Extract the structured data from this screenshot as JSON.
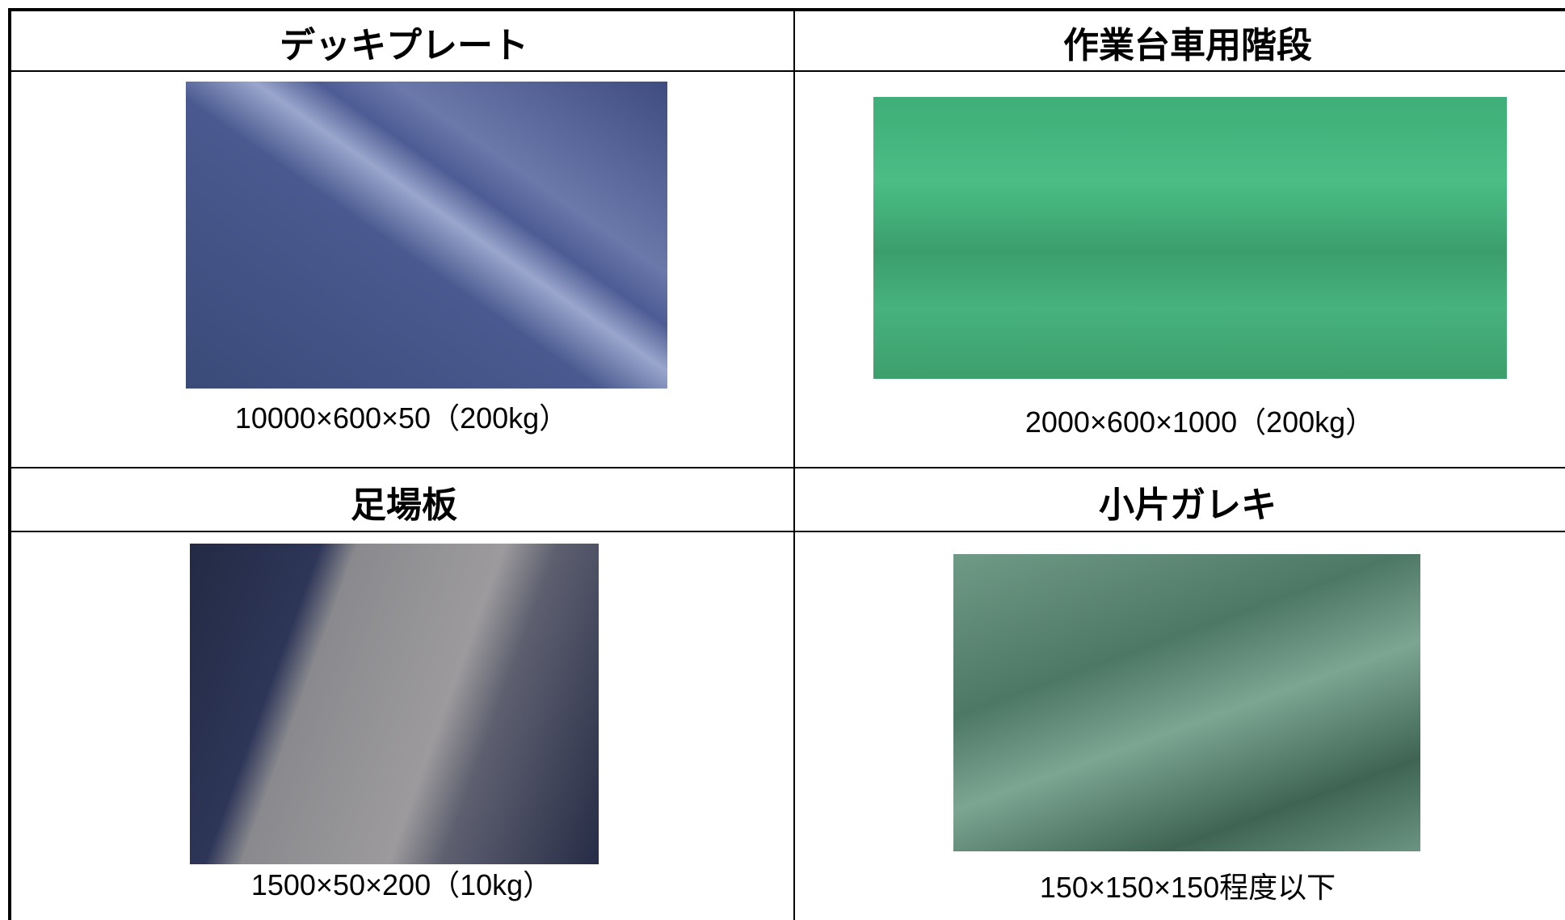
{
  "table": {
    "cells": [
      {
        "title": "デッキプレート",
        "caption": "10000×600×50（200kg）"
      },
      {
        "title": "作業台車用階段",
        "caption": "2000×600×1000（200kg）"
      },
      {
        "title": "足場板",
        "caption": "1500×50×200（10kg）"
      },
      {
        "title": "小片ガレキ",
        "caption": "150×150×150程度以下"
      }
    ]
  }
}
